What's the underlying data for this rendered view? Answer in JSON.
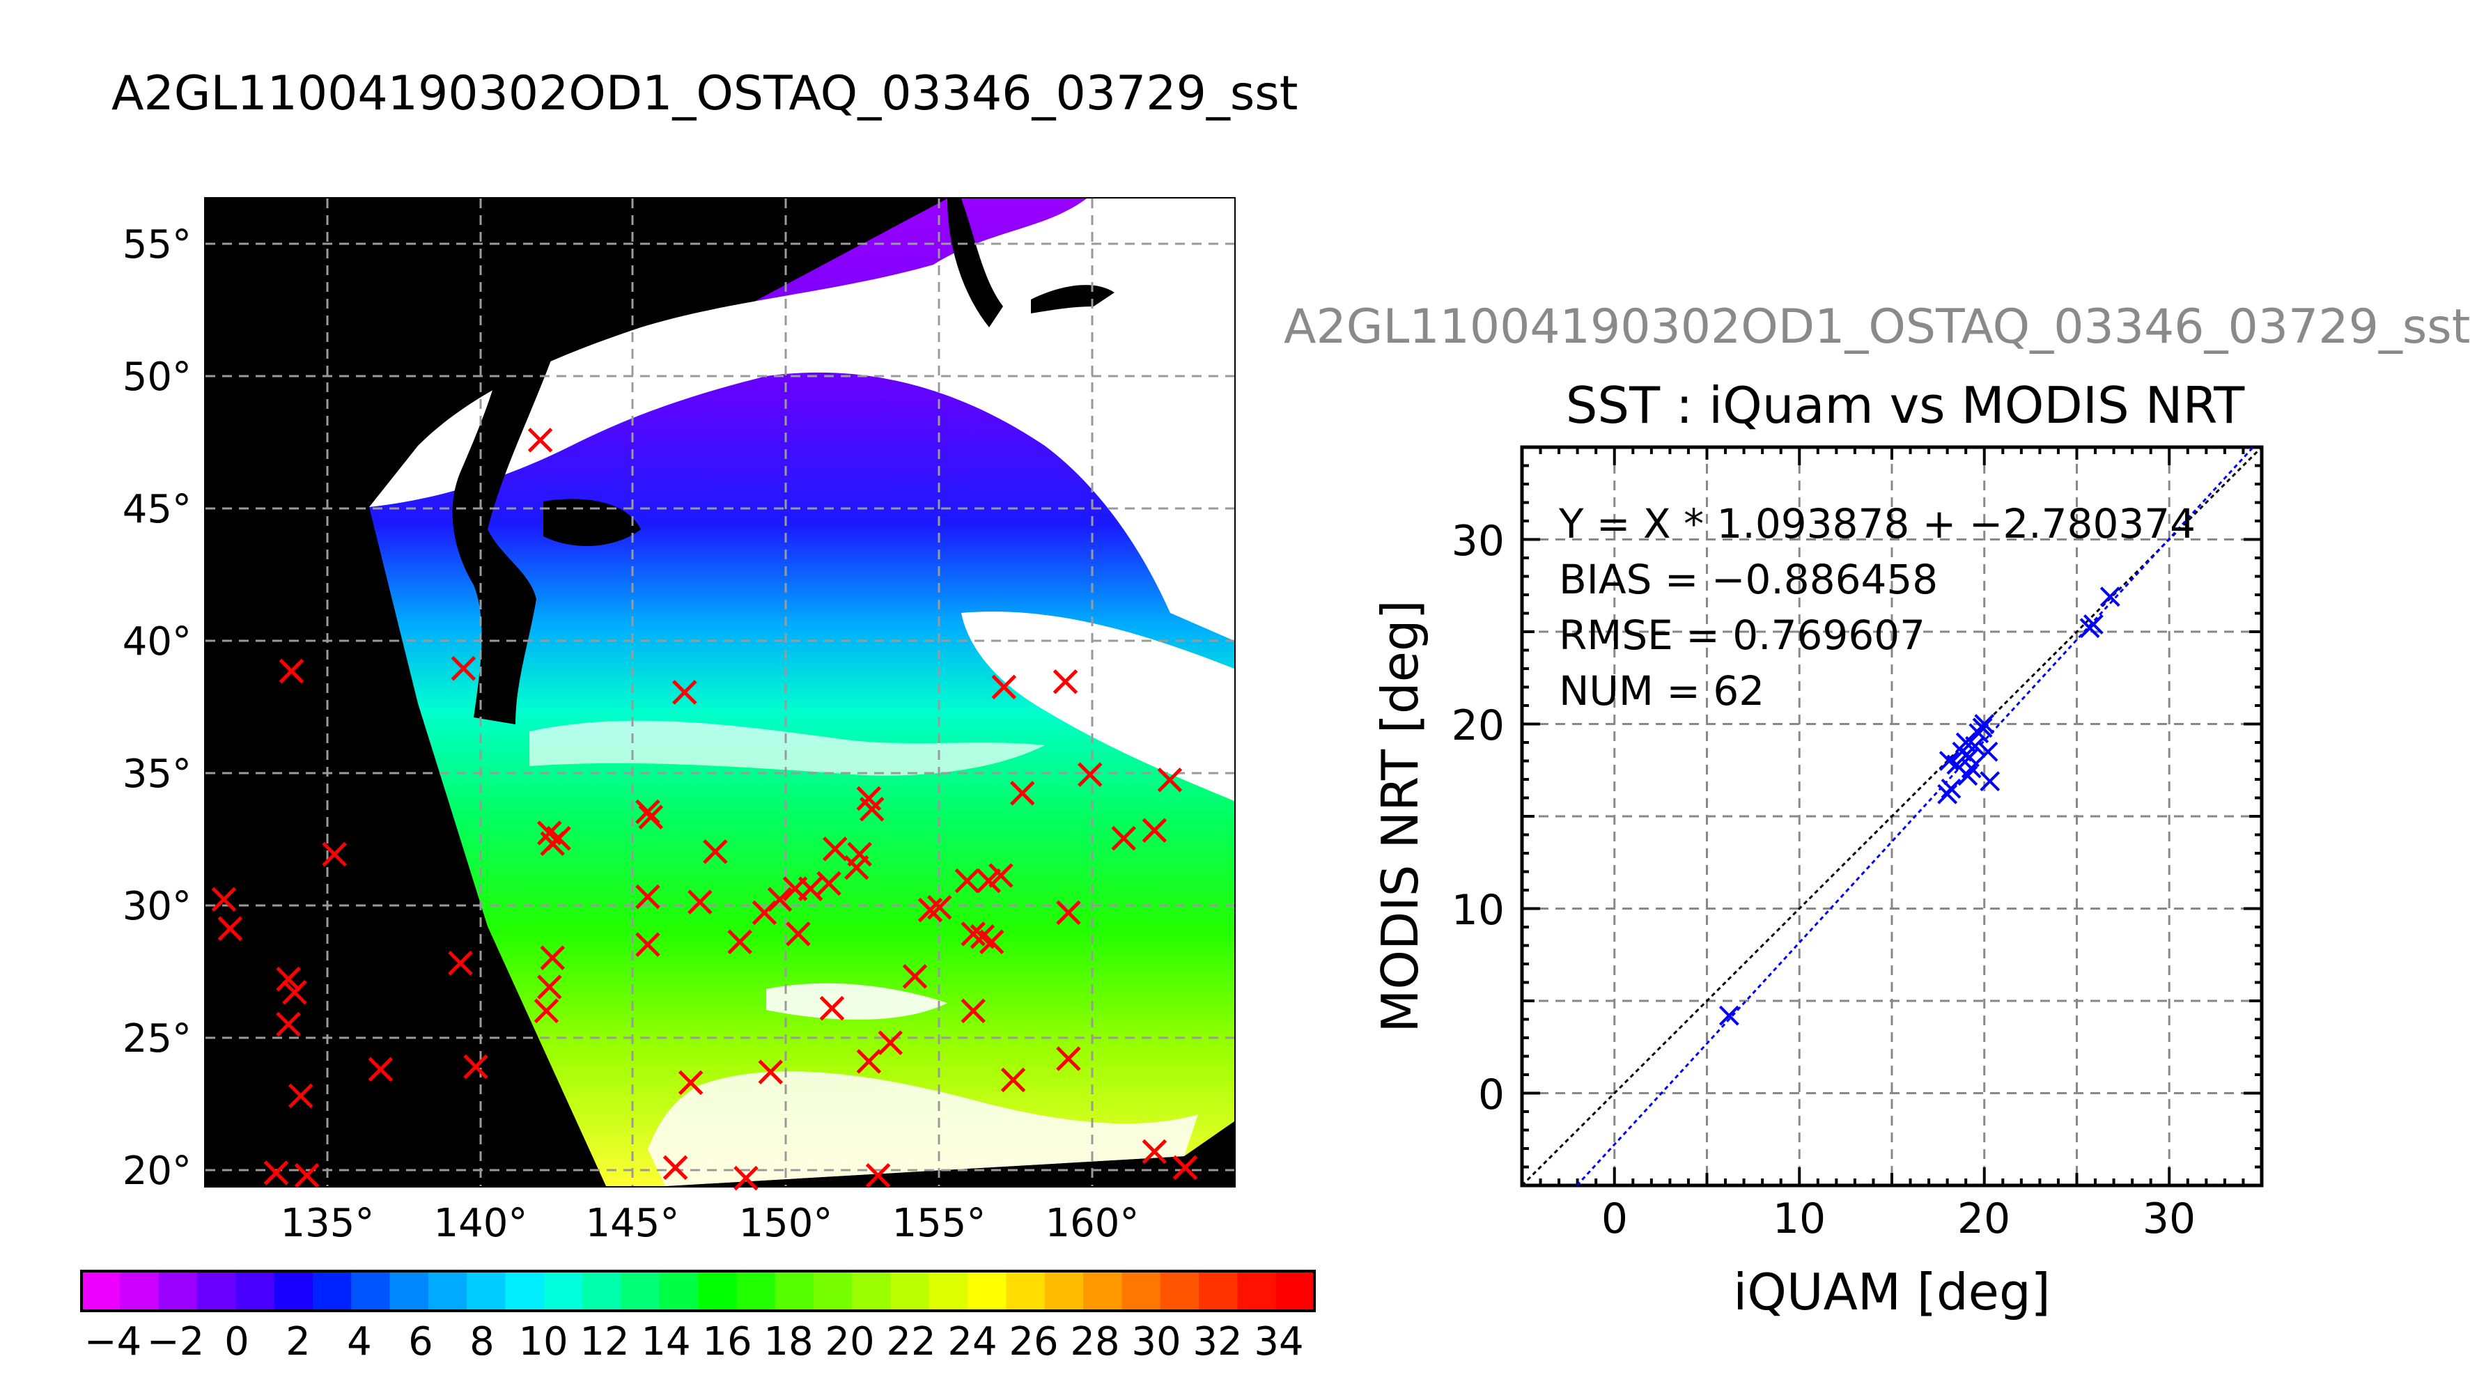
{
  "main_title": "A2GL11004190302OD1_OSTAQ_03346_03729_sst",
  "sub_title": "A2GL11004190302OD1_OSTAQ_03346_03729_sst",
  "colorbar": {
    "ticks": [
      "−4",
      "−2",
      "0",
      "2",
      "4",
      "6",
      "8",
      "10",
      "12",
      "14",
      "16",
      "18",
      "20",
      "22",
      "24",
      "26",
      "28",
      "30",
      "32",
      "34"
    ],
    "colors": [
      "#ee00ff",
      "#cc00ff",
      "#9a00ff",
      "#6a00ff",
      "#4a00ff",
      "#1a00ff",
      "#0022ff",
      "#0055ff",
      "#0088ff",
      "#00aaff",
      "#00ccff",
      "#00eeff",
      "#00ffdd",
      "#00ffaa",
      "#00ff77",
      "#00ff44",
      "#00ff00",
      "#22ff00",
      "#55ff00",
      "#77ff00",
      "#99ff00",
      "#bbff00",
      "#ddff00",
      "#ffff00",
      "#ffdd00",
      "#ffbb00",
      "#ff9900",
      "#ff7700",
      "#ff5500",
      "#ff3300",
      "#ff1100",
      "#ff0000"
    ]
  },
  "map": {
    "lon_ticks": [
      "135°",
      "140°",
      "145°",
      "150°",
      "155°",
      "160°"
    ],
    "lat_ticks": [
      "55°",
      "50°",
      "45°",
      "40°",
      "35°",
      "30°",
      "25°",
      "20°"
    ]
  },
  "chart_data": [
    {
      "type": "scatter",
      "title": "SST : iQuam vs MODIS NRT",
      "xlabel": "iQUAM [deg]",
      "ylabel": "MODIS NRT [deg]",
      "xlim": [
        -5,
        35
      ],
      "ylim": [
        -5,
        35
      ],
      "xticks": [
        "0",
        "10",
        "20",
        "30"
      ],
      "yticks": [
        "0",
        "10",
        "20",
        "30"
      ],
      "grid": true,
      "annotations": [
        "Y = X * 1.093878 + −2.780374",
        "BIAS = −0.886458",
        "RMSE = 0.769607",
        "NUM = 62"
      ],
      "fit": {
        "slope": 1.093878,
        "intercept": -2.780374
      },
      "colors": {
        "points": "#0000ff",
        "fit_line": "#0000ff",
        "identity_line": "#000000"
      },
      "points": [
        [
          6.2,
          4.2
        ],
        [
          18.0,
          16.2
        ],
        [
          18.2,
          16.5
        ],
        [
          18.1,
          18.0
        ],
        [
          18.5,
          17.8
        ],
        [
          18.8,
          18.5
        ],
        [
          19.0,
          19.0
        ],
        [
          19.2,
          18.2
        ],
        [
          19.3,
          17.6
        ],
        [
          19.5,
          18.8
        ],
        [
          19.7,
          19.5
        ],
        [
          19.9,
          19.8
        ],
        [
          20.0,
          20.0
        ],
        [
          20.2,
          18.5
        ],
        [
          20.3,
          16.9
        ],
        [
          19.1,
          17.2
        ],
        [
          25.7,
          25.2
        ],
        [
          25.9,
          25.4
        ],
        [
          26.8,
          26.9
        ]
      ]
    },
    {
      "type": "heatmap",
      "title": "A2GL11004190302OD1_OSTAQ_03346_03729_sst",
      "xlabel": "",
      "ylabel": "",
      "xlim": [
        131,
        164.5
      ],
      "ylim": [
        19.5,
        56.7
      ],
      "colorbar_range": [
        -5,
        35
      ],
      "markers_lonlat": [
        [
          131.6,
          30.3
        ],
        [
          131.8,
          29.2
        ],
        [
          133.3,
          20.0
        ],
        [
          133.7,
          27.3
        ],
        [
          133.7,
          25.6
        ],
        [
          133.8,
          38.9
        ],
        [
          133.9,
          26.8
        ],
        [
          134.1,
          22.9
        ],
        [
          134.3,
          19.9
        ],
        [
          135.2,
          32.0
        ],
        [
          136.7,
          23.9
        ],
        [
          139.3,
          27.9
        ],
        [
          139.4,
          39.0
        ],
        [
          139.8,
          24.0
        ],
        [
          141.9,
          47.6
        ],
        [
          142.1,
          26.1
        ],
        [
          142.2,
          32.8
        ],
        [
          142.2,
          27.0
        ],
        [
          142.3,
          32.4
        ],
        [
          142.3,
          28.1
        ],
        [
          142.5,
          32.6
        ],
        [
          145.4,
          33.6
        ],
        [
          145.4,
          30.4
        ],
        [
          145.4,
          28.6
        ],
        [
          145.5,
          33.4
        ],
        [
          146.3,
          20.2
        ],
        [
          146.6,
          38.1
        ],
        [
          146.8,
          23.4
        ],
        [
          147.1,
          30.2
        ],
        [
          147.6,
          32.1
        ],
        [
          148.4,
          28.7
        ],
        [
          148.6,
          19.8
        ],
        [
          149.2,
          29.8
        ],
        [
          149.4,
          23.8
        ],
        [
          149.7,
          30.3
        ],
        [
          150.2,
          30.7
        ],
        [
          150.3,
          29.0
        ],
        [
          150.7,
          30.7
        ],
        [
          151.3,
          30.9
        ],
        [
          151.4,
          26.2
        ],
        [
          151.5,
          32.2
        ],
        [
          152.2,
          31.5
        ],
        [
          152.3,
          32.0
        ],
        [
          152.6,
          34.1
        ],
        [
          152.6,
          24.2
        ],
        [
          152.7,
          33.7
        ],
        [
          152.9,
          19.9
        ],
        [
          153.3,
          24.9
        ],
        [
          154.1,
          27.4
        ],
        [
          154.6,
          29.9
        ],
        [
          154.9,
          30.0
        ],
        [
          155.8,
          31.0
        ],
        [
          156.0,
          29.0
        ],
        [
          156.0,
          26.1
        ],
        [
          156.3,
          28.9
        ],
        [
          156.5,
          31.0
        ],
        [
          156.6,
          28.7
        ],
        [
          156.9,
          31.2
        ],
        [
          157.0,
          38.3
        ],
        [
          157.3,
          23.5
        ],
        [
          157.6,
          34.3
        ],
        [
          159.0,
          38.5
        ],
        [
          159.1,
          24.3
        ],
        [
          159.1,
          29.8
        ],
        [
          159.8,
          35.0
        ],
        [
          160.9,
          32.6
        ],
        [
          161.9,
          20.8
        ],
        [
          161.9,
          32.9
        ],
        [
          162.4,
          34.8
        ],
        [
          162.9,
          20.2
        ]
      ]
    }
  ]
}
